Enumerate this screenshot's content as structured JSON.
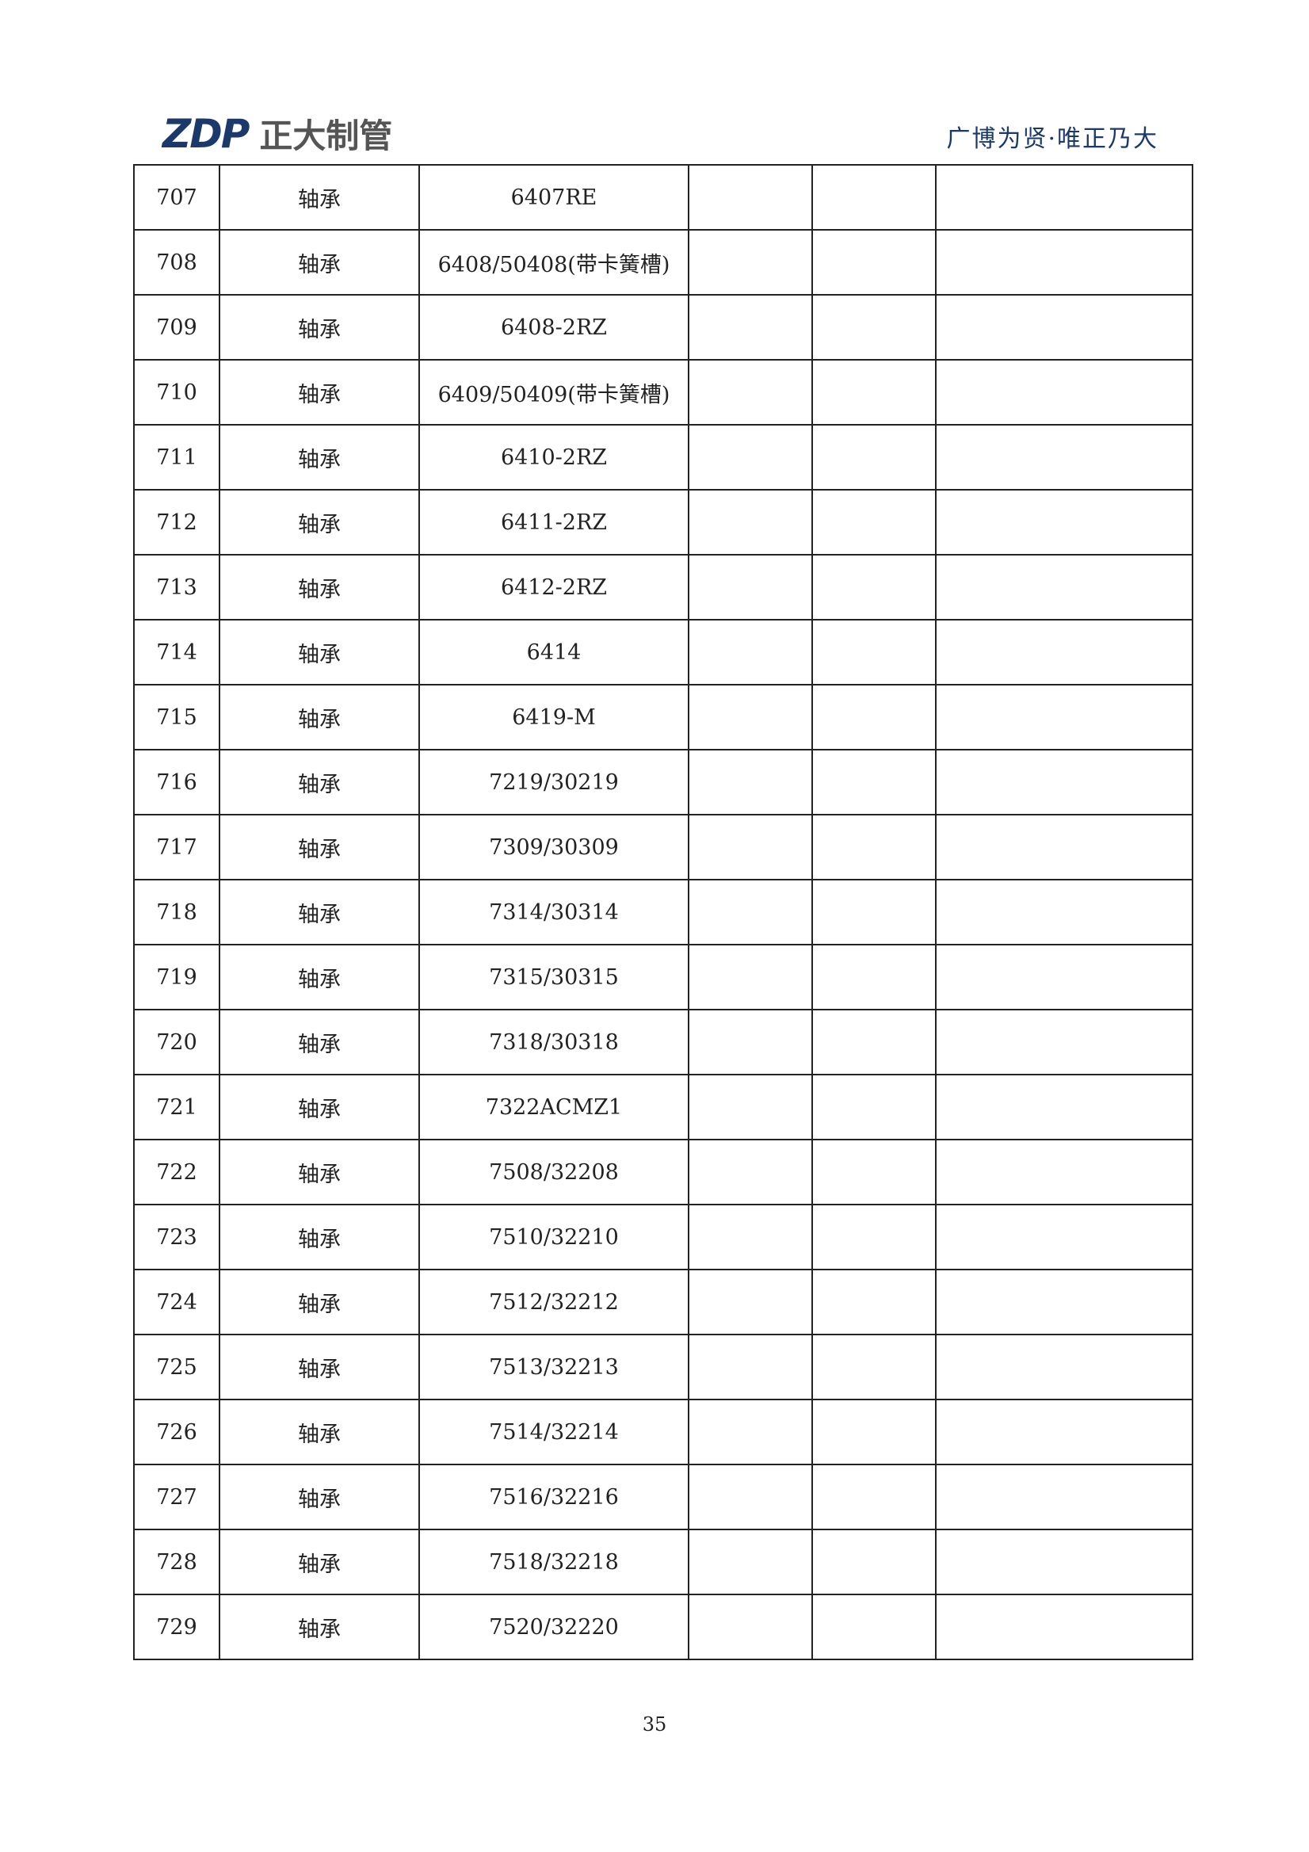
{
  "header": {
    "logo_mark": "ZDP",
    "logo_text": "正大制管",
    "slogan": "广博为贤·唯正乃大",
    "brand_color": "#1b3a6b"
  },
  "rows": [
    [
      "707",
      "轴承",
      "6407RE"
    ],
    [
      "708",
      "轴承",
      "6408/50408(带卡簧槽)"
    ],
    [
      "709",
      "轴承",
      "6408-2RZ"
    ],
    [
      "710",
      "轴承",
      "6409/50409(带卡簧槽)"
    ],
    [
      "711",
      "轴承",
      "6410-2RZ"
    ],
    [
      "712",
      "轴承",
      "6411-2RZ"
    ],
    [
      "713",
      "轴承",
      "6412-2RZ"
    ],
    [
      "714",
      "轴承",
      "6414"
    ],
    [
      "715",
      "轴承",
      "6419-M"
    ],
    [
      "716",
      "轴承",
      "7219/30219"
    ],
    [
      "717",
      "轴承",
      "7309/30309"
    ],
    [
      "718",
      "轴承",
      "7314/30314"
    ],
    [
      "719",
      "轴承",
      "7315/30315"
    ],
    [
      "720",
      "轴承",
      "7318/30318"
    ],
    [
      "721",
      "轴承",
      "7322ACMZ1"
    ],
    [
      "722",
      "轴承",
      "7508/32208"
    ],
    [
      "723",
      "轴承",
      "7510/32210"
    ],
    [
      "724",
      "轴承",
      "7512/32212"
    ],
    [
      "725",
      "轴承",
      "7513/32213"
    ],
    [
      "726",
      "轴承",
      "7514/32214"
    ],
    [
      "727",
      "轴承",
      "7516/32216"
    ],
    [
      "728",
      "轴承",
      "7518/32218"
    ],
    [
      "729",
      "轴承",
      "7520/32220"
    ]
  ],
  "footer": {
    "page_number": "35"
  }
}
